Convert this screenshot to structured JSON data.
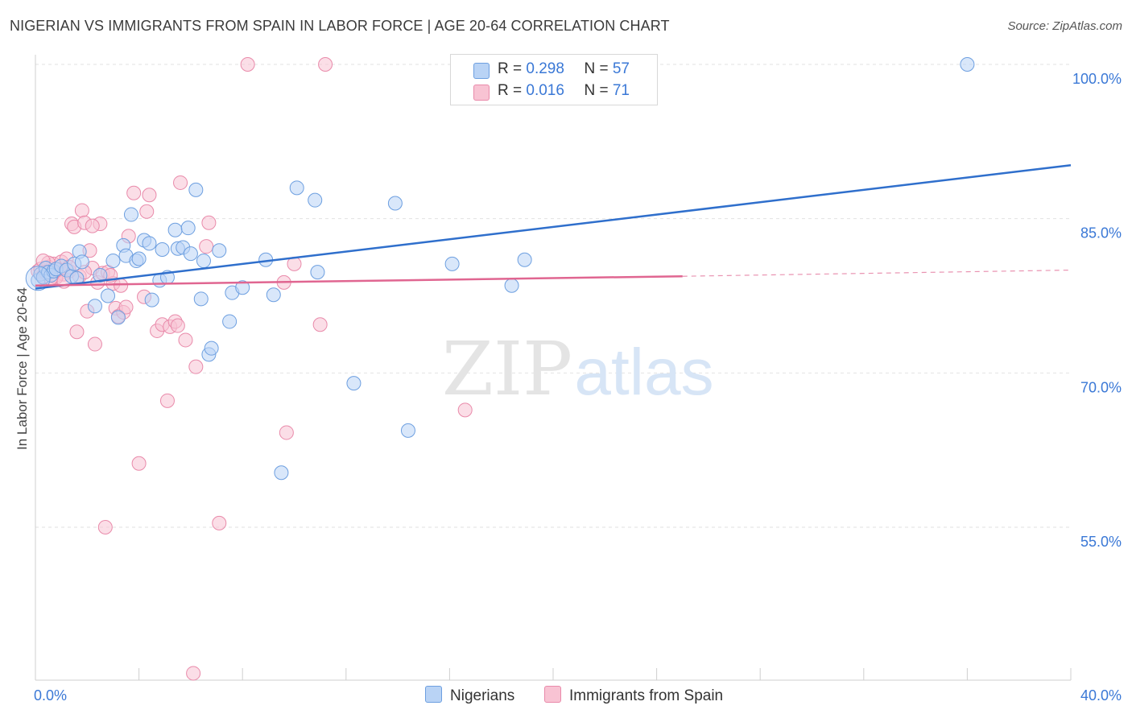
{
  "title": "NIGERIAN VS IMMIGRANTS FROM SPAIN IN LABOR FORCE | AGE 20-64 CORRELATION CHART",
  "source": "Source: ZipAtlas.com",
  "watermark": {
    "zip": "ZIP",
    "atlas": "atlas"
  },
  "legend": {
    "nigerians": {
      "r_label": "R = ",
      "r_value": "0.298",
      "n_label": "N = ",
      "n_value": "57"
    },
    "spain": {
      "r_label": "R = ",
      "r_value": "0.016",
      "n_label": "N = ",
      "n_value": "71"
    }
  },
  "bottom_legend": {
    "nigerians": "Nigerians",
    "spain": "Immigrants from Spain"
  },
  "colors": {
    "nigerians_fill": "#b9d3f5",
    "nigerians_stroke": "#6d9fe0",
    "nigerians_line": "#2f6fcc",
    "spain_fill": "#f8c3d3",
    "spain_stroke": "#e98aaa",
    "spain_line": "#e06691",
    "tick_label": "#3a78d6",
    "grid": "#e2e2e2"
  },
  "chart_data": {
    "type": "scatter",
    "title": "NIGERIAN VS IMMIGRANTS FROM SPAIN IN LABOR FORCE | AGE 20-64 CORRELATION CHART",
    "xlabel": "",
    "ylabel": "In Labor Force | Age 20-64",
    "xlim": [
      0,
      40
    ],
    "ylim": [
      40,
      101
    ],
    "x_tick_labels": [
      {
        "value": 0,
        "label": "0.0%"
      },
      {
        "value": 40,
        "label": "40.0%"
      }
    ],
    "y_tick_labels": [
      {
        "value": 100,
        "label": "100.0%"
      },
      {
        "value": 85,
        "label": "85.0%"
      },
      {
        "value": 70,
        "label": "70.0%"
      },
      {
        "value": 55,
        "label": "55.0%"
      }
    ],
    "grid": true,
    "legend_position": "top-center",
    "series": [
      {
        "name": "Nigerians",
        "points": [
          [
            0.1,
            79.0
          ],
          [
            0.2,
            79.6
          ],
          [
            0.3,
            79.3
          ],
          [
            0.4,
            80.2
          ],
          [
            0.5,
            79.8
          ],
          [
            0.6,
            79.5
          ],
          [
            0.7,
            79.9
          ],
          [
            0.8,
            80.1
          ],
          [
            1.0,
            80.4
          ],
          [
            1.2,
            80.0
          ],
          [
            1.4,
            79.4
          ],
          [
            1.5,
            80.6
          ],
          [
            1.6,
            79.2
          ],
          [
            1.7,
            81.8
          ],
          [
            1.8,
            80.8
          ],
          [
            2.3,
            76.5
          ],
          [
            2.5,
            79.5
          ],
          [
            2.8,
            77.5
          ],
          [
            3.0,
            80.9
          ],
          [
            3.2,
            75.4
          ],
          [
            3.4,
            82.4
          ],
          [
            3.5,
            81.4
          ],
          [
            3.7,
            85.4
          ],
          [
            3.9,
            80.9
          ],
          [
            4.0,
            81.1
          ],
          [
            4.2,
            82.9
          ],
          [
            4.4,
            82.6
          ],
          [
            4.5,
            77.1
          ],
          [
            4.8,
            79.0
          ],
          [
            4.9,
            82.0
          ],
          [
            5.1,
            79.3
          ],
          [
            5.4,
            83.9
          ],
          [
            5.5,
            82.1
          ],
          [
            5.7,
            82.2
          ],
          [
            5.9,
            84.1
          ],
          [
            6.0,
            81.6
          ],
          [
            6.2,
            87.8
          ],
          [
            6.4,
            77.2
          ],
          [
            6.5,
            80.9
          ],
          [
            6.7,
            71.8
          ],
          [
            6.8,
            72.4
          ],
          [
            7.1,
            81.9
          ],
          [
            7.5,
            75.0
          ],
          [
            7.6,
            77.8
          ],
          [
            8.0,
            78.3
          ],
          [
            8.9,
            81.0
          ],
          [
            9.2,
            77.6
          ],
          [
            9.5,
            60.3
          ],
          [
            10.1,
            88.0
          ],
          [
            10.8,
            86.8
          ],
          [
            10.9,
            79.8
          ],
          [
            12.3,
            69.0
          ],
          [
            13.9,
            86.5
          ],
          [
            14.4,
            64.4
          ],
          [
            16.1,
            80.6
          ],
          [
            18.4,
            78.5
          ],
          [
            18.9,
            81.0
          ],
          [
            36.0,
            100.0
          ]
        ],
        "trend": {
          "x": [
            0,
            40
          ],
          "y": [
            78.2,
            90.2
          ]
        }
      },
      {
        "name": "Immigrants from Spain",
        "points": [
          [
            0.1,
            79.9
          ],
          [
            0.2,
            80.1
          ],
          [
            0.3,
            79.4
          ],
          [
            0.4,
            79.7
          ],
          [
            0.5,
            80.3
          ],
          [
            0.6,
            79.1
          ],
          [
            0.7,
            80.6
          ],
          [
            0.8,
            79.5
          ],
          [
            0.9,
            80.0
          ],
          [
            1.0,
            80.8
          ],
          [
            1.1,
            79.6
          ],
          [
            1.2,
            81.1
          ],
          [
            1.3,
            79.9
          ],
          [
            1.4,
            84.5
          ],
          [
            1.5,
            84.2
          ],
          [
            1.6,
            74.0
          ],
          [
            1.7,
            79.4
          ],
          [
            1.8,
            85.8
          ],
          [
            1.9,
            84.6
          ],
          [
            2.0,
            76.0
          ],
          [
            2.1,
            81.9
          ],
          [
            2.2,
            80.2
          ],
          [
            2.3,
            72.8
          ],
          [
            2.4,
            78.8
          ],
          [
            2.5,
            84.5
          ],
          [
            2.6,
            79.7
          ],
          [
            2.7,
            55.0
          ],
          [
            2.8,
            79.8
          ],
          [
            3.0,
            78.7
          ],
          [
            3.1,
            76.3
          ],
          [
            3.2,
            75.5
          ],
          [
            3.4,
            75.9
          ],
          [
            3.5,
            76.4
          ],
          [
            3.6,
            83.3
          ],
          [
            3.8,
            87.5
          ],
          [
            4.0,
            61.2
          ],
          [
            4.2,
            77.4
          ],
          [
            4.3,
            85.7
          ],
          [
            4.4,
            87.3
          ],
          [
            4.7,
            74.1
          ],
          [
            4.9,
            74.7
          ],
          [
            5.1,
            67.3
          ],
          [
            5.2,
            74.5
          ],
          [
            5.4,
            75.0
          ],
          [
            5.5,
            74.6
          ],
          [
            5.6,
            88.5
          ],
          [
            5.8,
            73.2
          ],
          [
            6.1,
            40.8
          ],
          [
            6.2,
            70.6
          ],
          [
            6.6,
            82.3
          ],
          [
            6.7,
            84.6
          ],
          [
            7.1,
            55.4
          ],
          [
            8.2,
            100.0
          ],
          [
            9.6,
            78.8
          ],
          [
            9.7,
            64.2
          ],
          [
            10.0,
            80.6
          ],
          [
            11.0,
            74.7
          ],
          [
            11.2,
            100.0
          ],
          [
            16.6,
            66.4
          ],
          [
            21.3,
            100.0
          ],
          [
            0.5,
            80.7
          ],
          [
            1.9,
            79.8
          ],
          [
            2.2,
            84.3
          ],
          [
            0.8,
            79.3
          ],
          [
            1.3,
            80.3
          ],
          [
            0.3,
            80.9
          ],
          [
            0.6,
            79.2
          ],
          [
            2.9,
            79.5
          ],
          [
            1.1,
            78.9
          ],
          [
            3.3,
            78.5
          ],
          [
            0.4,
            79.8
          ]
        ],
        "trend": {
          "x": [
            0,
            25
          ],
          "y": [
            78.5,
            79.4
          ]
        },
        "trend_dashed": {
          "x": [
            25,
            40
          ],
          "y": [
            79.4,
            80.0
          ]
        }
      }
    ]
  }
}
